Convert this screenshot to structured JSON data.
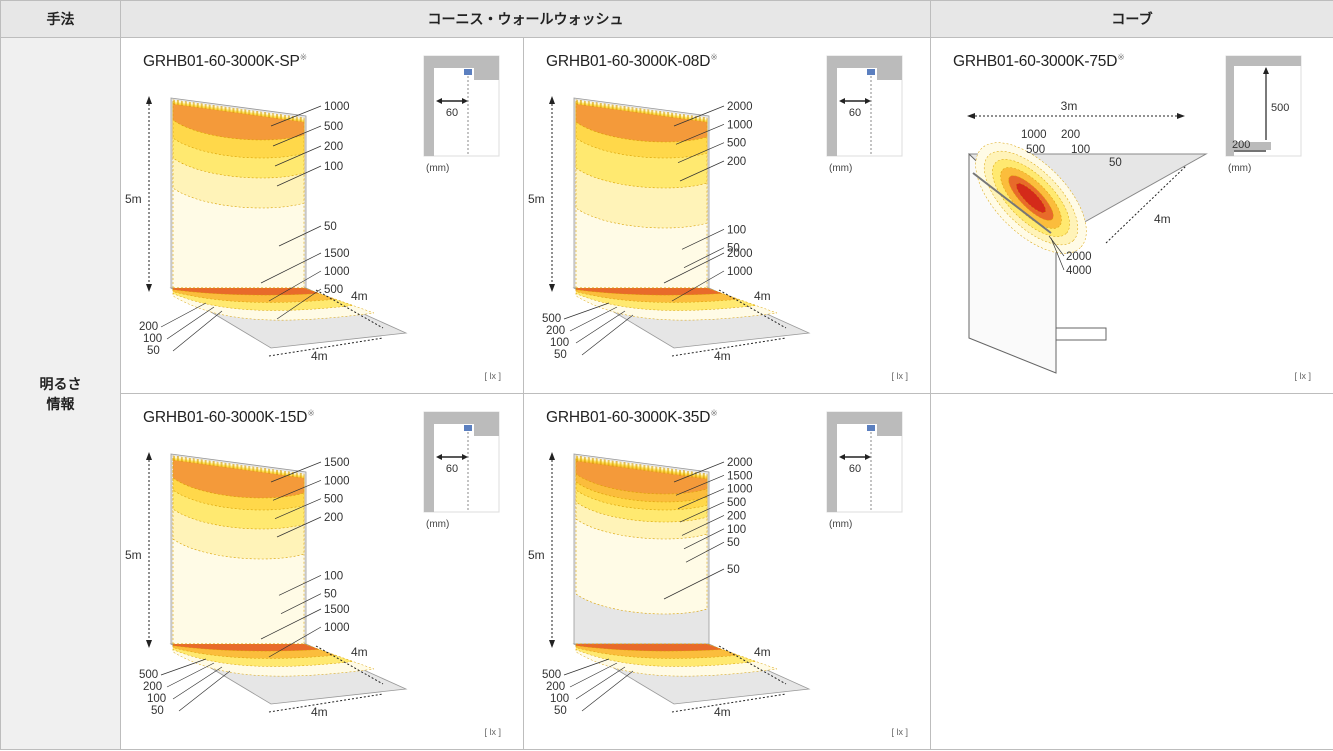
{
  "header": {
    "method": "手法",
    "cornice": "コーニス・ウォールウォッシュ",
    "cove": "コーブ"
  },
  "row_label": [
    "明るさ",
    "情報"
  ],
  "lx_unit": "[ lx ]",
  "mm_unit": "(mm)",
  "cells": [
    {
      "model": "GRHB01-60-3000K-SP",
      "mark": "※",
      "height_label": "5m",
      "depth_label": "4m",
      "width_label": "4m",
      "inset": "60",
      "wall_labels": [
        "1000",
        "500",
        "200",
        "100",
        "50"
      ],
      "floor_labels": [
        "1500",
        "1000",
        "500"
      ],
      "floor_left_labels": [
        "200",
        "100",
        "50"
      ]
    },
    {
      "model": "GRHB01-60-3000K-08D",
      "mark": "※",
      "height_label": "5m",
      "depth_label": "4m",
      "width_label": "4m",
      "inset": "60",
      "wall_labels": [
        "2000",
        "1000",
        "500",
        "200",
        "100",
        "50"
      ],
      "floor_labels": [
        "2000",
        "1000"
      ],
      "floor_left_labels": [
        "500",
        "200",
        "100",
        "50"
      ]
    },
    {
      "model": "GRHB01-60-3000K-75D",
      "mark": "※",
      "width_label": "3m",
      "depth_label": "4m",
      "inset_vertical": "500",
      "inset_horizontal": "200",
      "upper_labels": [
        "1000",
        "200",
        "500",
        "100",
        "50"
      ],
      "lower_labels": [
        "2000",
        "4000"
      ]
    },
    {
      "model": "GRHB01-60-3000K-15D",
      "mark": "※",
      "height_label": "5m",
      "depth_label": "4m",
      "width_label": "4m",
      "inset": "60",
      "wall_labels": [
        "1500",
        "1000",
        "500",
        "200",
        "100",
        "50"
      ],
      "floor_labels": [
        "1500",
        "1000"
      ],
      "floor_left_labels": [
        "500",
        "200",
        "100",
        "50"
      ]
    },
    {
      "model": "GRHB01-60-3000K-35D",
      "mark": "※",
      "height_label": "5m",
      "depth_label": "4m",
      "width_label": "4m",
      "inset": "60",
      "wall_labels": [
        "2000",
        "1500",
        "1000",
        "500",
        "200",
        "100",
        "50"
      ],
      "floor_labels": [
        "50"
      ],
      "floor_left_labels": [
        "500",
        "200",
        "100",
        "50"
      ]
    }
  ]
}
